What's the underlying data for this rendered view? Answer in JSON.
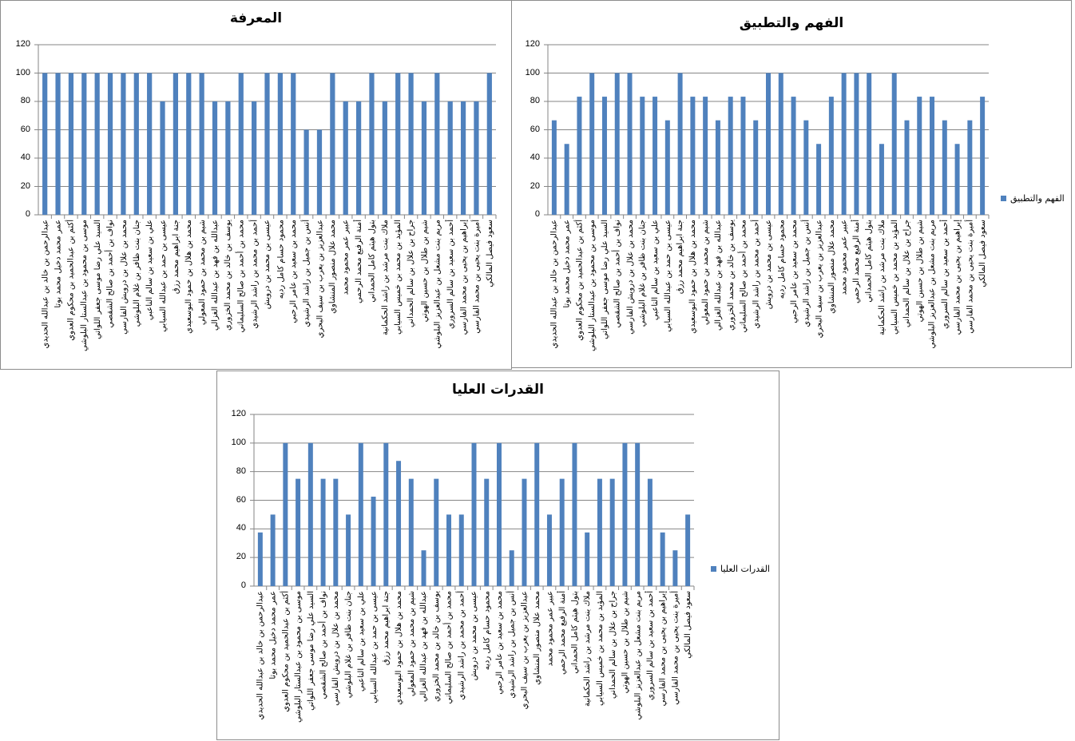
{
  "chart_data": [
    {
      "type": "bar",
      "title": "المعرفة",
      "xlabel": "",
      "ylabel": "",
      "ylim": [
        0,
        120
      ],
      "yticks": [
        0,
        20,
        40,
        60,
        80,
        100,
        120
      ],
      "grid": true,
      "legend": null,
      "color": "#4f81bd",
      "categories": [
        "عبدالرحمن بن خالد بن عبدالله الحديدي",
        "عمر محمد دخيل محمد بوتا",
        "أكثم بن عبدالحميد بن محكوم العدوي",
        "موسى بن محمود بن عبدالستار البلوشي",
        "السيد علي رضا موسى جعفر اللواتي",
        "نواف بن أحمد بن صالح الشقصي",
        "محمد بن علال بن درويش الفارسي",
        "جنان بنت ظافر بن غلام البلوشي",
        "علي بن سعيد بن سالم الناعبي",
        "عيسى بن حمد بن عبدالله السيابي",
        "جنة ابراهيم محمد رزق",
        "محمد بن هلال بن حمود البوسعيدي",
        "شيم بن محمد بن حمود المعولي",
        "عبدالله بن فهد بن عبدالله الغزالي",
        "يوسف بن خالد بن محمد الخزوري",
        "محمد بن أحمد بن صالح السليماني",
        "أحمد بن محمد بن راشد الرشيدي",
        "عيسى بن محمد بن درويش",
        "محمود حسام كامل رديه",
        "محمد بن سعيد بن عامر الرحبي",
        "أنس بن جميل بن راشد الرشيدي",
        "عبدالعزيز بن يعرب بن سيف البحري",
        "محمد علال منصور المنشاوي",
        "عبير عمر محمود محمد",
        "أمنة الرفيع محمد الرحمي",
        "بتول هيثم كامل الحمداني",
        "ملاك بنت مرشد بن راشد الحكمانية",
        "المؤيد بن محمد بن خميس السيابي",
        "جراح بن علال بن سالم الحمداني",
        "شيم بن طلال بن حسين الهوتي",
        "مريم بنت مشعل بن عبدالعزيز البلوشي",
        "أحمد بن سعيد بن سالم السروري",
        "إبراهيم بن يحيى بن محمد الفارسي",
        "أميرة بنت يحيى بن محمد الفارسي",
        "سعود فيصل المالكي"
      ],
      "values": [
        100,
        100,
        100,
        100,
        100,
        100,
        100,
        100,
        100,
        80,
        100,
        100,
        100,
        80,
        80,
        100,
        80,
        100,
        100,
        100,
        60,
        60,
        100,
        80,
        80,
        100,
        80,
        100,
        100,
        80,
        100,
        80,
        80,
        80,
        100
      ]
    },
    {
      "type": "bar",
      "title": "الفهم والتطبيق",
      "xlabel": "",
      "ylabel": "",
      "ylim": [
        0,
        120
      ],
      "yticks": [
        0,
        20,
        40,
        60,
        80,
        100,
        120
      ],
      "grid": true,
      "legend": {
        "position": "right",
        "entries": [
          "الفهم والتطبيق"
        ]
      },
      "color": "#4f81bd",
      "categories": [
        "عبدالرحمن بن خالد بن عبدالله الحديدي",
        "عمر محمد دخيل محمد بوتا",
        "أكثم بن عبدالحميد بن محكوم العدوي",
        "موسى بن محمود بن عبدالستار البلوشي",
        "السيد علي رضا موسى جعفر اللواتي",
        "نواف بن أحمد بن صالح الشقصي",
        "محمد بن علال بن درويش الفارسي",
        "جنان بنت ظافر بن غلام البلوشي",
        "علي بن سعيد بن سالم الناعبي",
        "عيسى بن حمد بن عبدالله السيابي",
        "جنة ابراهيم محمد رزق",
        "محمد بن هلال بن حمود البوسعيدي",
        "شيم بن محمد بن حمود المعولي",
        "عبدالله بن فهد بن عبدالله الغزالي",
        "يوسف بن خالد بن محمد الخزوري",
        "محمد بن أحمد بن صالح السليماني",
        "أحمد بن محمد بن راشد الرشيدي",
        "عيسى بن محمد بن درويش",
        "محمود حسام كامل رديه",
        "محمد بن سعيد بن عامر الرحبي",
        "أنس بن جميل بن راشد الرشيدي",
        "عبدالعزيز بن يعرب بن سيف البحري",
        "محمد علال منصور المنشاوي",
        "عبير عمر محمود محمد",
        "أمنة الرفيع محمد الرحمي",
        "بتول هيثم كامل الحمداني",
        "ملاك بنت مرشد بن راشد الحكمانية",
        "المؤيد بن محمد بن خميس السيابي",
        "جراح بن علال بن سالم الحمداني",
        "شيم بن طلال بن حسين الهوتي",
        "مريم بنت مشعل بن عبدالعزيز البلوشي",
        "أحمد بن سعيد بن سالم السروري",
        "إبراهيم بن يحيى بن محمد الفارسي",
        "أميرة بنت يحيى بن محمد الفارسي",
        "سعود فيصل المالكي"
      ],
      "values": [
        66.67,
        50,
        83.33,
        100,
        83.33,
        100,
        100,
        83.33,
        83.33,
        66.67,
        100,
        83.33,
        83.33,
        66.67,
        83.33,
        83.33,
        66.67,
        100,
        100,
        83.33,
        66.67,
        50,
        83.33,
        100,
        100,
        100,
        50,
        100,
        66.67,
        83.33,
        83.33,
        66.67,
        50,
        66.67,
        83.33
      ]
    },
    {
      "type": "bar",
      "title": "القدرات العليا",
      "xlabel": "",
      "ylabel": "",
      "ylim": [
        0,
        120
      ],
      "yticks": [
        0,
        20,
        40,
        60,
        80,
        100,
        120
      ],
      "grid": true,
      "legend": {
        "position": "right",
        "entries": [
          "القدرات العليا"
        ]
      },
      "color": "#4f81bd",
      "categories": [
        "عبدالرحمن بن خالد بن عبدالله الحديدي",
        "عمر محمد دخيل محمد بوتا",
        "أكثم بن عبدالحميد بن محكوم العدوي",
        "موسى بن محمود بن عبدالستار البلوشي",
        "السيد علي رضا موسى جعفر اللواتي",
        "نواف بن أحمد بن صالح الشقصي",
        "محمد بن علال بن درويش الفارسي",
        "جنان بنت ظافر بن غلام البلوشي",
        "علي بن سعيد بن سالم الناعبي",
        "عيسى بن حمد بن عبدالله السيابي",
        "جنة ابراهيم محمد رزق",
        "محمد بن هلال بن حمود البوسعيدي",
        "شيم بن محمد بن حمود المعولي",
        "عبدالله بن فهد بن عبدالله الغزالي",
        "يوسف بن خالد بن محمد الخزوري",
        "محمد بن أحمد بن صالح السليماني",
        "أحمد بن محمد بن راشد الرشيدي",
        "عيسى بن محمد بن درويش",
        "محمود حسام كامل رديه",
        "محمد بن سعيد بن عامر الرحبي",
        "أنس بن جميل بن راشد الرشيدي",
        "عبدالعزيز بن يعرب بن سيف البحري",
        "محمد علال منصور المنشاوي",
        "عبير عمر محمود محمد",
        "أمنة الرفيع محمد الرحمي",
        "بتول هيثم كامل الحمداني",
        "ملاك بنت مرشد بن راشد الحكمانية",
        "المؤيد بن محمد بن خميس السيابي",
        "جراح بن علال بن سالم الحمداني",
        "شيم بن طلال بن حسين الهوتي",
        "مريم بنت مشعل بن عبدالعزيز البلوشي",
        "أحمد بن سعيد بن سالم السروري",
        "إبراهيم بن يحيى بن محمد الفارسي",
        "أميرة بنت يحيى بن محمد الفارسي",
        "سعود فيصل المالكي"
      ],
      "values": [
        37.5,
        50,
        100,
        75,
        100,
        75,
        75,
        50,
        100,
        62.5,
        100,
        87.5,
        75,
        25,
        75,
        50,
        50,
        100,
        75,
        100,
        25,
        75,
        100,
        50,
        75,
        100,
        37.5,
        75,
        75,
        100,
        100,
        75,
        37.5,
        25,
        50
      ]
    }
  ]
}
